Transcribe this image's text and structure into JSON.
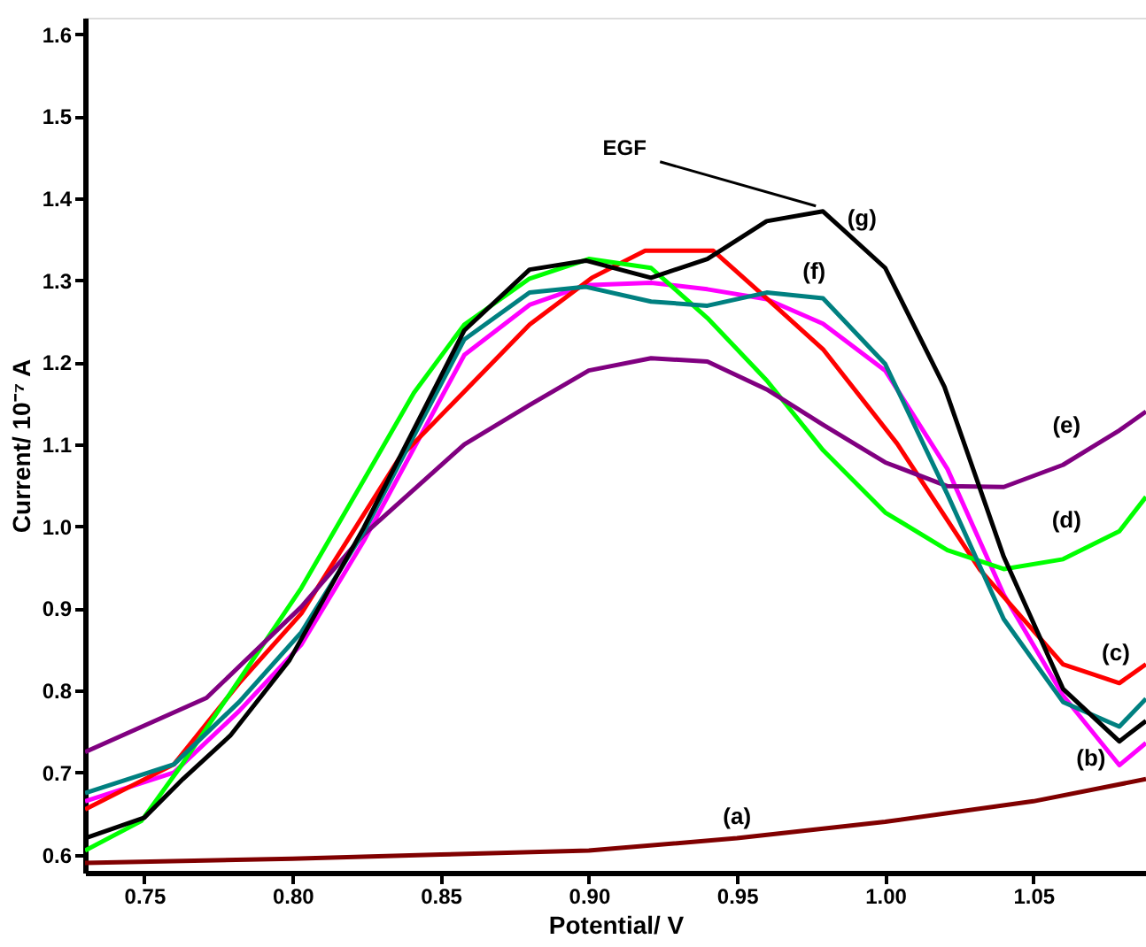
{
  "chart_data": {
    "type": "line",
    "xlabel": "Potential/ V",
    "ylabel": "Current/ 10⁻⁷ A",
    "xlim": [
      0.73,
      1.088
    ],
    "ylim": [
      0.578,
      1.62
    ],
    "xticks": [
      0.75,
      {
        "value": 0.8,
        "label": "0.80"
      },
      0.85,
      {
        "value": 0.9,
        "label": "0.90"
      },
      0.95,
      {
        "value": 1.0,
        "label": "1.00"
      },
      1.05
    ],
    "yticks": [
      0.6,
      0.7,
      0.8,
      0.9,
      {
        "value": 1.0,
        "label": "1.0"
      },
      1.1,
      1.2,
      1.3,
      1.4,
      1.5,
      1.6
    ],
    "grid": false,
    "legend": false,
    "line_style": "solid",
    "marker": "none",
    "series": [
      {
        "name": "(a)",
        "color": "#800000",
        "x": [
          0.73,
          0.8,
          0.85,
          0.9,
          0.95,
          1.0,
          1.05,
          1.088
        ],
        "values": [
          0.59,
          0.595,
          0.6,
          0.605,
          0.62,
          0.64,
          0.665,
          0.692
        ]
      },
      {
        "name": "(b)",
        "color": "#ff00ff",
        "x": [
          0.73,
          0.76,
          0.782,
          0.803,
          0.824,
          0.858,
          0.88,
          0.899,
          0.921,
          0.94,
          0.96,
          0.979,
          1.0,
          1.021,
          1.04,
          1.06,
          1.079,
          1.088
        ],
        "values": [
          0.665,
          0.7,
          0.775,
          0.856,
          0.982,
          1.209,
          1.27,
          1.294,
          1.297,
          1.289,
          1.277,
          1.247,
          1.19,
          1.07,
          0.917,
          0.794,
          0.709,
          0.736
        ]
      },
      {
        "name": "(c)",
        "color": "#ff0000",
        "x": [
          0.73,
          0.76,
          0.782,
          0.803,
          0.836,
          0.88,
          0.901,
          0.919,
          0.942,
          0.96,
          0.979,
          1.004,
          1.032,
          1.06,
          1.079,
          1.088
        ],
        "values": [
          0.655,
          0.71,
          0.809,
          0.894,
          1.083,
          1.246,
          1.303,
          1.336,
          1.336,
          1.278,
          1.216,
          1.101,
          0.947,
          0.832,
          0.809,
          0.832
        ]
      },
      {
        "name": "(d)",
        "color": "#00ff00",
        "x": [
          0.73,
          0.749,
          0.762,
          0.777,
          0.803,
          0.824,
          0.841,
          0.858,
          0.88,
          0.9,
          0.921,
          0.94,
          0.96,
          0.979,
          1.0,
          1.021,
          1.04,
          1.06,
          1.079,
          1.088
        ],
        "values": [
          0.605,
          0.641,
          0.706,
          0.786,
          0.925,
          1.056,
          1.163,
          1.246,
          1.302,
          1.326,
          1.315,
          1.254,
          1.178,
          1.093,
          1.017,
          0.971,
          0.948,
          0.96,
          0.994,
          1.036
        ]
      },
      {
        "name": "(e)",
        "color": "#800080",
        "x": [
          0.73,
          0.771,
          0.803,
          0.824,
          0.858,
          0.88,
          0.9,
          0.921,
          0.94,
          0.96,
          0.979,
          1.0,
          1.021,
          1.04,
          1.06,
          1.079,
          1.088
        ],
        "values": [
          0.725,
          0.791,
          0.902,
          0.99,
          1.1,
          1.148,
          1.19,
          1.205,
          1.201,
          1.167,
          1.124,
          1.078,
          1.049,
          1.048,
          1.075,
          1.117,
          1.14
        ]
      },
      {
        "name": "(f)",
        "color": "#008080",
        "x": [
          0.73,
          0.76,
          0.782,
          0.803,
          0.824,
          0.858,
          0.88,
          0.899,
          0.921,
          0.94,
          0.96,
          0.979,
          1.0,
          1.021,
          1.04,
          1.06,
          1.079,
          1.088
        ],
        "values": [
          0.675,
          0.71,
          0.786,
          0.871,
          0.993,
          1.228,
          1.285,
          1.292,
          1.274,
          1.269,
          1.285,
          1.278,
          1.198,
          1.039,
          0.887,
          0.786,
          0.756,
          0.79
        ]
      },
      {
        "name": "(g)",
        "color": "#000000",
        "x": [
          0.73,
          0.75,
          0.763,
          0.779,
          0.799,
          0.824,
          0.858,
          0.88,
          0.899,
          0.921,
          0.94,
          0.96,
          0.979,
          1.0,
          1.02,
          1.04,
          1.06,
          1.079,
          1.088
        ],
        "values": [
          0.62,
          0.645,
          0.692,
          0.745,
          0.837,
          0.998,
          1.239,
          1.313,
          1.324,
          1.303,
          1.326,
          1.372,
          1.384,
          1.315,
          1.17,
          0.963,
          0.802,
          0.738,
          0.763
        ]
      }
    ],
    "annotations": [
      {
        "text": "EGF",
        "x": 0.979,
        "y": 1.384
      }
    ]
  }
}
